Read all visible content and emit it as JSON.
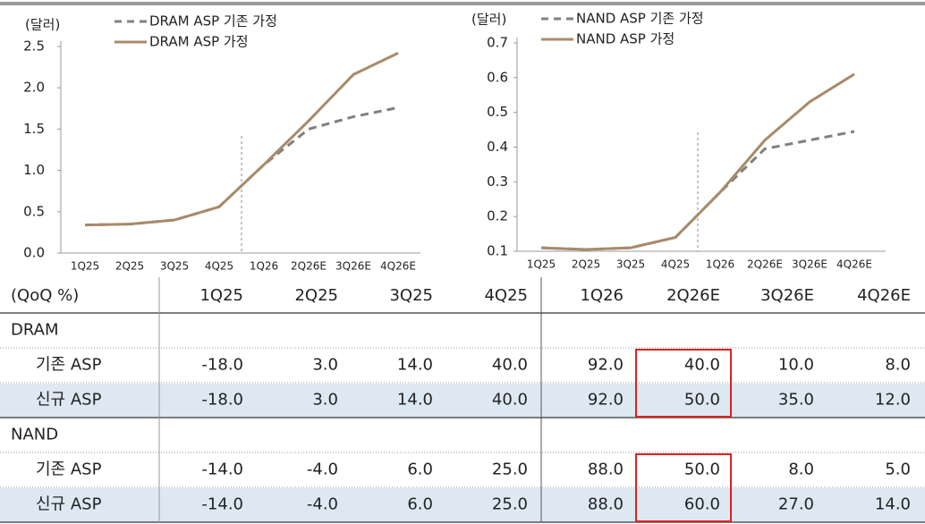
{
  "chart_data": [
    {
      "type": "line",
      "y_label": "(달러)",
      "categories": [
        "1Q25",
        "2Q25",
        "3Q25",
        "4Q25",
        "1Q26",
        "2Q26E",
        "3Q26E",
        "4Q26E"
      ],
      "series": [
        {
          "name": "DRAM ASP 기존 가정",
          "color": "#808080",
          "dashed": true,
          "values": [
            0.34,
            0.35,
            0.4,
            0.56,
            1.07,
            1.5,
            1.65,
            1.76
          ]
        },
        {
          "name": "DRAM ASP 가정",
          "color": "#a88b6a",
          "dashed": false,
          "values": [
            0.34,
            0.35,
            0.4,
            0.56,
            1.07,
            1.6,
            2.16,
            2.42
          ]
        }
      ],
      "ylim": [
        0,
        2.5
      ],
      "yticks": [
        {
          "value": 0,
          "label": "0.0"
        },
        0.5,
        {
          "value": 1,
          "label": "1.0"
        },
        1.5,
        {
          "value": 2,
          "label": "2.0"
        },
        2.5
      ]
    },
    {
      "type": "line",
      "y_label": "(달러)",
      "categories": [
        "1Q25",
        "2Q25",
        "3Q25",
        "4Q25",
        "1Q26",
        "2Q26E",
        "3Q26E",
        "4Q26E"
      ],
      "series": [
        {
          "name": "NAND ASP 기존 가정",
          "color": "#808080",
          "dashed": true,
          "values": [
            0.11,
            0.105,
            0.11,
            0.14,
            0.27,
            0.395,
            0.42,
            0.445
          ]
        },
        {
          "name": "NAND ASP 가정",
          "color": "#a88b6a",
          "dashed": false,
          "values": [
            0.11,
            0.105,
            0.11,
            0.14,
            0.27,
            0.42,
            0.53,
            0.61
          ]
        }
      ],
      "ylim": [
        0.1,
        0.7
      ],
      "yticks": [
        0.1,
        0.2,
        0.3,
        0.4,
        0.5,
        0.6,
        0.7
      ]
    }
  ],
  "table": {
    "header": [
      "(QoQ %)",
      "1Q25",
      "2Q25",
      "3Q25",
      "4Q25",
      "1Q26",
      "2Q26E",
      "3Q26E",
      "4Q26E"
    ],
    "sections": [
      {
        "name": "DRAM",
        "rows": [
          {
            "label": "기존 ASP",
            "values": [
              "-18.0",
              "3.0",
              "14.0",
              "40.0",
              "92.0",
              "40.0",
              "10.0",
              "8.0"
            ]
          },
          {
            "label": "신규 ASP",
            "values": [
              "-18.0",
              "3.0",
              "14.0",
              "40.0",
              "92.0",
              "50.0",
              "35.0",
              "12.0"
            ]
          }
        ]
      },
      {
        "name": "NAND",
        "rows": [
          {
            "label": "기존 ASP",
            "values": [
              "-14.0",
              "-4.0",
              "6.0",
              "25.0",
              "88.0",
              "50.0",
              "8.0",
              "5.0"
            ]
          },
          {
            "label": "신규 ASP",
            "values": [
              "-14.0",
              "-4.0",
              "6.0",
              "25.0",
              "88.0",
              "60.0",
              "27.0",
              "14.0"
            ]
          }
        ]
      }
    ]
  }
}
